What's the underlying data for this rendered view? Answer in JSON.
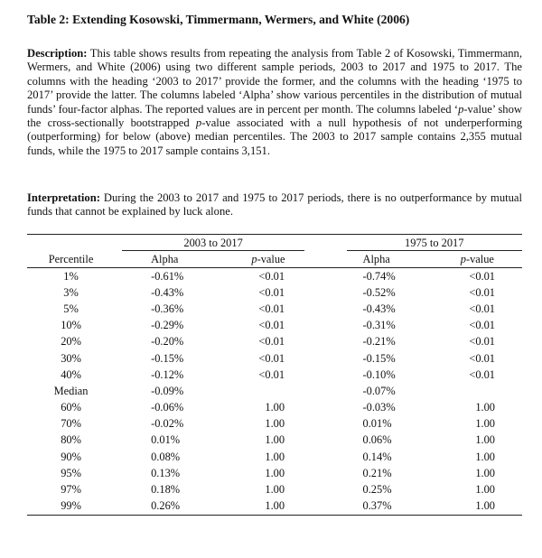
{
  "title": "Table 2: Extending Kosowski, Timmermann, Wermers, and White (2006)",
  "description": {
    "label": "Description:",
    "s1": " This table shows results from repeating the analysis from Table 2 of Kosowski, Timmermann, Wermers, and White (2006) using two different sample periods, 2003 to 2017 and 1975 to 2017. The columns with the heading ‘2003 to 2017’ provide the former, and the columns with the heading ‘1975 to 2017’ provide the latter. The columns labeled ‘Alpha’ show various percentiles in the distribution of mutual funds’ four-factor alphas. The reported values are in percent per month. The columns labeled ‘",
    "s1_italic": "p",
    "s2": "-value’ show the cross-sectionally bootstrapped ",
    "s2_italic": "p",
    "s3": "-value associated with a null hypothesis of not underperforming (outperforming) for below (above) median percentiles. The 2003 to 2017 sample contains 2,355 mutual funds, while the 1975 to 2017 sample contains 3,151."
  },
  "interpretation": {
    "label": "Interpretation:",
    "text": " During the 2003 to 2017 and 1975 to 2017 periods, there is no outperformance by mutual funds that cannot be explained by luck alone."
  },
  "table": {
    "group1": "2003 to 2017",
    "group2": "1975 to 2017",
    "col_percentile": "Percentile",
    "col_alpha": "Alpha",
    "col_pvalue_italic": "p",
    "col_pvalue_rest": "-value",
    "rows": [
      {
        "pct": "1%",
        "a1": "-0.61%",
        "p1": "<0.01",
        "a2": "-0.74%",
        "p2": "<0.01"
      },
      {
        "pct": "3%",
        "a1": "-0.43%",
        "p1": "<0.01",
        "a2": "-0.52%",
        "p2": "<0.01"
      },
      {
        "pct": "5%",
        "a1": "-0.36%",
        "p1": "<0.01",
        "a2": "-0.43%",
        "p2": "<0.01"
      },
      {
        "pct": "10%",
        "a1": "-0.29%",
        "p1": "<0.01",
        "a2": "-0.31%",
        "p2": "<0.01"
      },
      {
        "pct": "20%",
        "a1": "-0.20%",
        "p1": "<0.01",
        "a2": "-0.21%",
        "p2": "<0.01"
      },
      {
        "pct": "30%",
        "a1": "-0.15%",
        "p1": "<0.01",
        "a2": "-0.15%",
        "p2": "<0.01"
      },
      {
        "pct": "40%",
        "a1": "-0.12%",
        "p1": "<0.01",
        "a2": "-0.10%",
        "p2": "<0.01"
      },
      {
        "pct": "Median",
        "a1": "-0.09%",
        "p1": "",
        "a2": "-0.07%",
        "p2": ""
      },
      {
        "pct": "60%",
        "a1": "-0.06%",
        "p1": "1.00",
        "a2": "-0.03%",
        "p2": "1.00"
      },
      {
        "pct": "70%",
        "a1": "-0.02%",
        "p1": "1.00",
        "a2": "0.01%",
        "p2": "1.00"
      },
      {
        "pct": "80%",
        "a1": "0.01%",
        "p1": "1.00",
        "a2": "0.06%",
        "p2": "1.00"
      },
      {
        "pct": "90%",
        "a1": "0.08%",
        "p1": "1.00",
        "a2": "0.14%",
        "p2": "1.00"
      },
      {
        "pct": "95%",
        "a1": "0.13%",
        "p1": "1.00",
        "a2": "0.21%",
        "p2": "1.00"
      },
      {
        "pct": "97%",
        "a1": "0.18%",
        "p1": "1.00",
        "a2": "0.25%",
        "p2": "1.00"
      },
      {
        "pct": "99%",
        "a1": "0.26%",
        "p1": "1.00",
        "a2": "0.37%",
        "p2": "1.00"
      }
    ]
  }
}
